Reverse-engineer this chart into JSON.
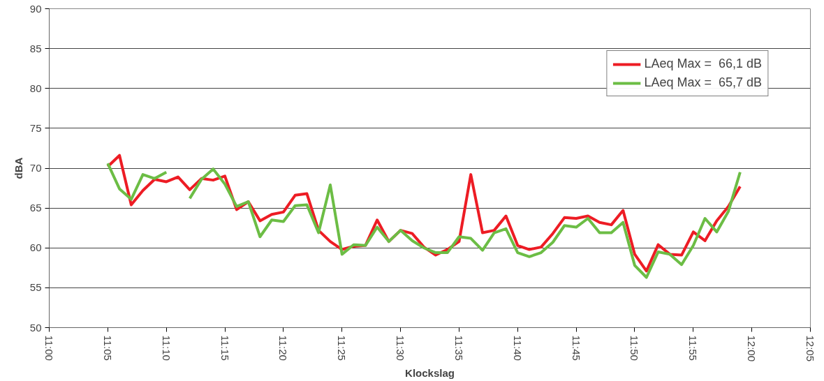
{
  "chart_data": {
    "type": "line",
    "xlabel": "Klockslag",
    "ylabel": "dBA",
    "x": [
      11.0833,
      11.1,
      11.1167,
      11.1333,
      11.15,
      11.1667,
      11.1833,
      11.2,
      11.2167,
      11.2333,
      11.25,
      11.2667,
      11.2833,
      11.3,
      11.3167,
      11.3333,
      11.35,
      11.3667,
      11.3833,
      11.4,
      11.4167,
      11.4333,
      11.45,
      11.4667,
      11.4833,
      11.5,
      11.5167,
      11.5333,
      11.55,
      11.5667,
      11.5833,
      11.6,
      11.6167,
      11.6333,
      11.65,
      11.6667,
      11.6833,
      11.7,
      11.7167,
      11.7333,
      11.75,
      11.7667,
      11.7833,
      11.8,
      11.8167,
      11.8333,
      11.85,
      11.8667,
      11.8833,
      11.9,
      11.9167,
      11.9333,
      11.95,
      11.9667,
      11.9833
    ],
    "series": [
      {
        "name": "LAeq Max =  66,1 dB",
        "color": "#ed1c24",
        "values": [
          70.2,
          71.6,
          65.4,
          67.2,
          68.6,
          68.3,
          68.9,
          67.3,
          68.7,
          68.5,
          69.0,
          64.8,
          65.8,
          63.4,
          64.2,
          64.5,
          66.6,
          66.8,
          62.2,
          60.8,
          59.8,
          60.2,
          60.3,
          63.5,
          60.8,
          62.2,
          61.8,
          60.1,
          59.1,
          59.8,
          60.8,
          69.2,
          61.9,
          62.2,
          64.0,
          60.3,
          59.8,
          60.1,
          61.8,
          63.8,
          63.7,
          64.0,
          63.2,
          62.9,
          64.7,
          59.2,
          57.1,
          60.4,
          59.2,
          59.1,
          62.0,
          60.9,
          63.4,
          65.2,
          67.7
        ]
      },
      {
        "name": "LAeq Max =  65,7 dB",
        "color": "#6cbd45",
        "values": [
          70.6,
          67.4,
          66.1,
          69.2,
          68.7,
          69.5,
          null,
          66.2,
          68.6,
          69.9,
          68.0,
          65.2,
          65.8,
          61.4,
          63.5,
          63.3,
          65.3,
          65.4,
          61.9,
          67.9,
          59.2,
          60.4,
          60.3,
          62.6,
          60.8,
          62.2,
          60.9,
          60.0,
          59.4,
          59.4,
          61.4,
          61.2,
          59.7,
          61.9,
          62.4,
          59.4,
          58.9,
          59.4,
          60.7,
          62.8,
          62.6,
          63.7,
          61.9,
          61.9,
          63.2,
          57.8,
          56.3,
          59.5,
          59.2,
          57.9,
          60.3,
          63.7,
          62.0,
          64.6,
          69.5
        ]
      }
    ],
    "xlim": [
      11.0,
      12.0833
    ],
    "xticks": [
      {
        "value": 11.0,
        "label": "11:00"
      },
      {
        "value": 11.0833,
        "label": "11:05"
      },
      {
        "value": 11.1667,
        "label": "11:10"
      },
      {
        "value": 11.25,
        "label": "11:15"
      },
      {
        "value": 11.3333,
        "label": "11:20"
      },
      {
        "value": 11.4167,
        "label": "11:25"
      },
      {
        "value": 11.5,
        "label": "11:30"
      },
      {
        "value": 11.5833,
        "label": "11:35"
      },
      {
        "value": 11.6667,
        "label": "11:40"
      },
      {
        "value": 11.75,
        "label": "11:45"
      },
      {
        "value": 11.8333,
        "label": "11:50"
      },
      {
        "value": 11.9167,
        "label": "11:55"
      },
      {
        "value": 12.0,
        "label": "12:00"
      },
      {
        "value": 12.0833,
        "label": "12:05"
      }
    ],
    "ylim": [
      50,
      90
    ],
    "yticks": [
      50,
      55,
      60,
      65,
      70,
      75,
      80,
      85,
      90
    ],
    "grid": "y",
    "legend": "top right",
    "marker": "none",
    "line_style": "solid"
  }
}
